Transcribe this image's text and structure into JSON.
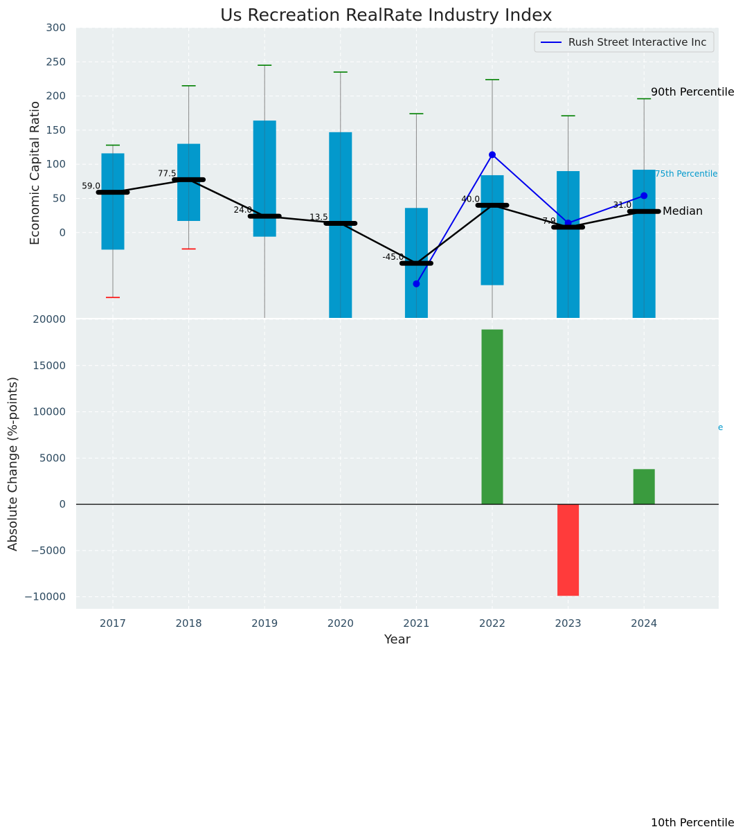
{
  "chart_data": [
    {
      "type": "box",
      "title": "Us Recreation RealRate Industry Index",
      "xlabel": "",
      "ylabel": "Economic Capital Ratio",
      "ylim": [
        -125,
        300
      ],
      "yticks": [
        "300",
        "250",
        "200",
        "150",
        "100",
        "50",
        "0"
      ],
      "ytick_values": [
        300,
        250,
        200,
        150,
        100,
        50,
        0
      ],
      "grid": true,
      "categories": [
        2017,
        2018,
        2019,
        2020,
        2021,
        2022,
        2023,
        2024
      ],
      "p10": [
        -95,
        -24,
        null,
        null,
        null,
        null,
        null,
        null
      ],
      "p25": [
        -25,
        17,
        -6,
        -130,
        -130,
        -77,
        -130,
        -130
      ],
      "median": [
        59.0,
        77.5,
        24.0,
        13.5,
        -45.0,
        40.0,
        7.9,
        31.0
      ],
      "median_labels": [
        "59.0",
        "77.5",
        "24.0",
        "13.5",
        "-45.0",
        "40.0",
        "7.9",
        "31.0"
      ],
      "p75": [
        116,
        130,
        164,
        147,
        36,
        84,
        90,
        92
      ],
      "p90": [
        128,
        215,
        245,
        235,
        174,
        224,
        171,
        196
      ],
      "series": [
        {
          "name": "Rush Street Interactive Inc",
          "color": "#0000ee",
          "x": [
            2021,
            2022,
            2023,
            2024
          ],
          "values": [
            -75,
            114,
            14,
            54
          ]
        }
      ],
      "median_series_color": "#000000",
      "box_color": "#0399cc",
      "p90_whisker_color": "#008000",
      "p10_whisker_color": "#ff0000",
      "annotations": {
        "p90": "90th Percentile",
        "p75": "75th Percentile",
        "median": "Median",
        "p10": "10th Percentile",
        "p75_cut": "e"
      },
      "legend": {
        "placement": "top-right",
        "label": "Rush Street Interactive Inc"
      }
    },
    {
      "type": "bar",
      "title": "",
      "xlabel": "Year",
      "ylabel": "Absolute Change (%-points)",
      "ylim": [
        -11300,
        20000
      ],
      "yticks": [
        "20000",
        "15000",
        "10000",
        "5000",
        "0",
        "−5000",
        "−10000"
      ],
      "ytick_values": [
        20000,
        15000,
        10000,
        5000,
        0,
        -5000,
        -10000
      ],
      "xticks": [
        "2017",
        "2018",
        "2019",
        "2020",
        "2021",
        "2022",
        "2023",
        "2024"
      ],
      "grid": true,
      "categories": [
        2017,
        2018,
        2019,
        2020,
        2021,
        2022,
        2023,
        2024
      ],
      "values": [
        null,
        null,
        null,
        null,
        null,
        18900,
        -9900,
        3800
      ],
      "positive_color": "#3a9b3e",
      "negative_color": "#ff3b3b"
    }
  ],
  "colors": {
    "plot_bg": "#eaeff0",
    "axis_text": "#2d4a60",
    "grid": "#ffffff"
  }
}
